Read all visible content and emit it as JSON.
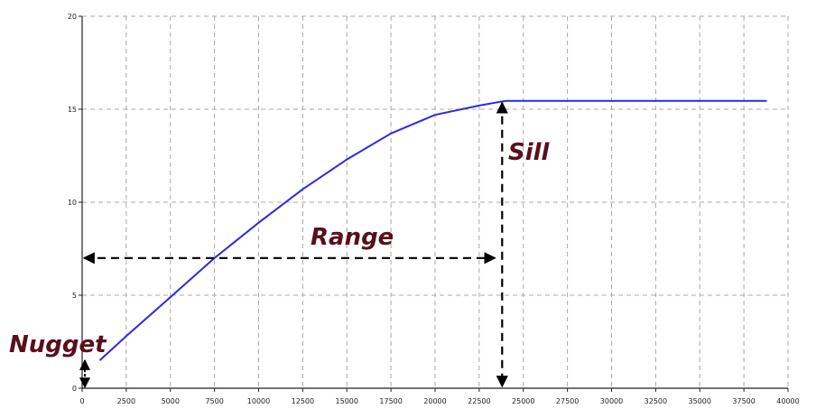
{
  "chart_data": {
    "type": "line",
    "title": "",
    "xlabel": "",
    "ylabel": "",
    "xlim": [
      0,
      40000
    ],
    "ylim": [
      0,
      20
    ],
    "x_ticks": [
      0,
      2500,
      5000,
      7500,
      10000,
      12500,
      15000,
      17500,
      20000,
      22500,
      25000,
      27500,
      30000,
      32500,
      35000,
      37500,
      40000
    ],
    "y_ticks": [
      0,
      5,
      10,
      15,
      20
    ],
    "grid": true,
    "legend": "none",
    "series": [
      {
        "color": "#2a2ae6",
        "x": [
          1000,
          2500,
          5000,
          7500,
          10000,
          12500,
          15000,
          17500,
          20000,
          22500,
          24000,
          25000,
          30000,
          35000,
          38800
        ],
        "y": [
          1.5,
          2.8,
          4.9,
          7.0,
          8.9,
          10.7,
          12.3,
          13.7,
          14.7,
          15.2,
          15.45,
          15.45,
          15.45,
          15.45,
          15.45
        ]
      }
    ],
    "annotations": {
      "nugget": {
        "label": "Nugget",
        "value": 1.5
      },
      "range": {
        "label": "Range",
        "value": 23500,
        "at_y": 7
      },
      "sill": {
        "label": "Sill",
        "value": 15.45,
        "at_x": 23800
      }
    }
  }
}
